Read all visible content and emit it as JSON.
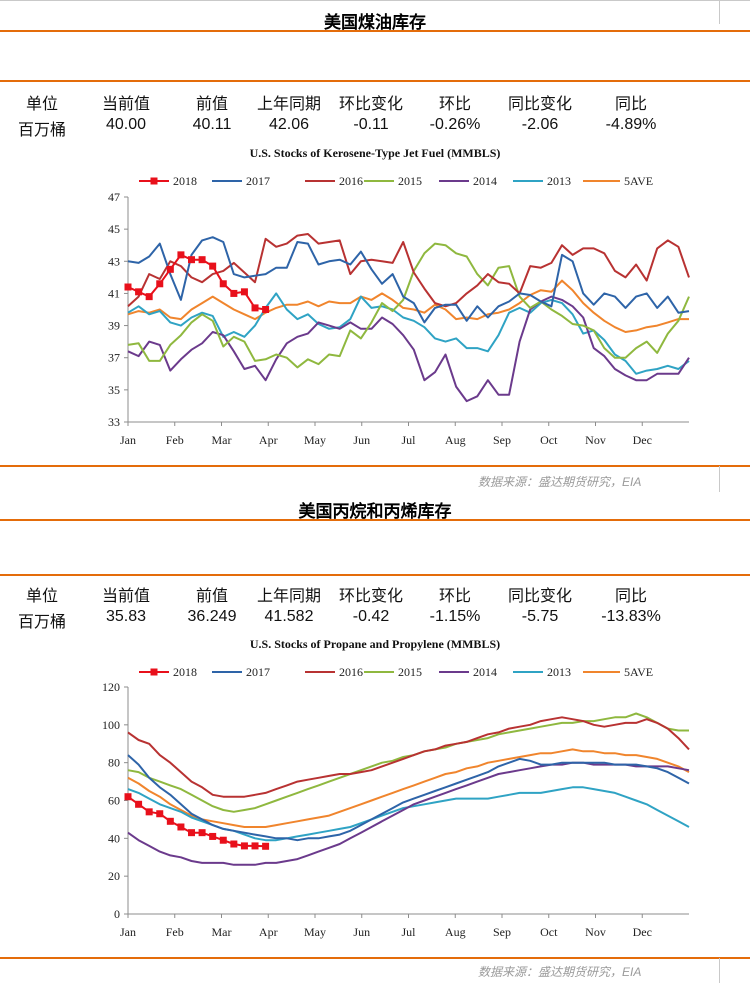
{
  "sections": [
    {
      "title": "美国煤油库存",
      "stats": {
        "headers": [
          "单位",
          "当前值",
          "前值",
          "上年同期",
          "环比变化",
          "环比",
          "同比变化",
          "同比"
        ],
        "values": [
          "百万桶",
          "40.00",
          "40.11",
          "42.06",
          "-0.11",
          "-0.26%",
          "-2.06",
          "-4.89%"
        ]
      },
      "source": "数据来源：盛达期货研究，EIA"
    },
    {
      "title": "美国丙烷和丙烯库存",
      "stats": {
        "headers": [
          "单位",
          "当前值",
          "前值",
          "上年同期",
          "环比变化",
          "环比",
          "同比变化",
          "同比"
        ],
        "values": [
          "百万桶",
          "35.83",
          "36.249",
          "41.582",
          "-0.42",
          "-1.15%",
          "-5.75",
          "-13.83%"
        ]
      },
      "source": "数据来源：盛达期货研究，EIA"
    }
  ],
  "colors": {
    "2018": "#e8101b",
    "2017": "#2e64a8",
    "2016": "#b83232",
    "2015": "#8fb83f",
    "2014": "#6b3a8c",
    "2013": "#2fa3c4",
    "5AVE": "#f0852d"
  },
  "chart_data": [
    {
      "type": "line",
      "title": "U.S.  Stocks of Kerosene-Type Jet Fuel (MMBLS)",
      "x_unit": "week",
      "xticks": [
        "Jan",
        "Feb",
        "Mar",
        "Apr",
        "May",
        "Jun",
        "Jul",
        "Aug",
        "Sep",
        "Oct",
        "Nov",
        "Dec"
      ],
      "ylim": [
        33,
        47
      ],
      "yticks": [
        33,
        35,
        37,
        39,
        41,
        43,
        45,
        47
      ],
      "grid": false,
      "legend": "top",
      "series": [
        {
          "name": "2018",
          "marker": "square",
          "values": [
            41.4,
            41.1,
            40.8,
            41.6,
            42.5,
            43.4,
            43.1,
            43.1,
            42.7,
            41.6,
            41.0,
            41.1,
            40.1,
            40.0
          ]
        },
        {
          "name": "2017",
          "values": [
            43.0,
            42.9,
            43.3,
            44.1,
            42.2,
            40.6,
            43.4,
            44.3,
            44.5,
            44.2,
            42.2,
            42.0,
            42.1,
            42.2,
            42.6,
            42.6,
            44.2,
            44.1,
            42.8,
            43.0,
            43.1,
            42.8,
            43.6,
            42.5,
            41.6,
            42.2,
            40.8,
            40.4,
            39.2,
            40.1,
            40.3,
            40.3,
            39.3,
            40.2,
            39.5,
            40.2,
            40.5,
            41.0,
            40.9,
            40.5,
            40.2,
            43.4,
            43.0,
            41.0,
            40.3,
            41.0,
            40.8,
            40.1,
            40.8,
            41.0,
            40.1,
            40.8,
            39.8,
            39.9
          ]
        },
        {
          "name": "2016",
          "values": [
            40.2,
            40.8,
            42.2,
            41.9,
            43.0,
            42.7,
            42.0,
            41.7,
            42.2,
            42.4,
            42.9,
            42.3,
            41.7,
            44.4,
            43.9,
            44.1,
            44.6,
            44.7,
            44.1,
            44.2,
            44.3,
            42.2,
            43.0,
            43.1,
            43.0,
            42.9,
            44.2,
            42.3,
            41.3,
            40.4,
            40.2,
            40.4,
            41.0,
            41.5,
            42.2,
            41.7,
            41.6,
            41.0,
            42.7,
            42.6,
            42.9,
            44.0,
            43.4,
            43.8,
            43.8,
            43.5,
            42.4,
            42.0,
            42.8,
            41.8,
            43.8,
            44.3,
            43.9,
            42.0
          ]
        },
        {
          "name": "2015",
          "values": [
            37.8,
            37.9,
            36.8,
            36.8,
            37.8,
            38.4,
            39.2,
            39.7,
            39.3,
            37.7,
            38.3,
            38.0,
            36.8,
            36.9,
            37.2,
            37.0,
            36.4,
            36.9,
            36.6,
            37.2,
            37.1,
            38.7,
            38.2,
            39.2,
            40.4,
            39.9,
            40.6,
            42.4,
            43.5,
            44.1,
            44.0,
            43.5,
            43.3,
            42.2,
            41.5,
            42.6,
            42.7,
            40.8,
            40.1,
            40.5,
            40.0,
            39.6,
            39.1,
            39.0,
            38.7,
            37.6,
            37.0,
            37.0,
            37.6,
            38.0,
            37.3,
            38.5,
            39.3,
            40.8
          ]
        },
        {
          "name": "2014",
          "values": [
            37.4,
            37.1,
            38.0,
            37.8,
            36.2,
            36.9,
            37.5,
            37.9,
            38.6,
            38.4,
            37.4,
            36.3,
            36.5,
            35.6,
            36.9,
            37.9,
            38.3,
            38.5,
            39.2,
            39.0,
            38.8,
            39.2,
            38.8,
            38.8,
            39.5,
            39.1,
            38.4,
            37.5,
            35.6,
            36.1,
            37.2,
            35.2,
            34.3,
            34.6,
            35.6,
            34.7,
            34.7,
            38.0,
            40.0,
            40.5,
            40.8,
            40.6,
            40.2,
            39.5,
            37.6,
            37.1,
            36.3,
            35.9,
            35.6,
            35.6,
            36.0,
            36.0,
            36.0,
            37.0
          ]
        },
        {
          "name": "2013",
          "values": [
            39.8,
            40.2,
            39.7,
            39.9,
            39.2,
            39.0,
            39.5,
            39.8,
            39.6,
            38.3,
            38.6,
            38.3,
            39.0,
            40.1,
            41.0,
            40.0,
            39.4,
            39.7,
            39.1,
            38.8,
            38.9,
            39.4,
            40.8,
            40.1,
            40.2,
            40.0,
            39.5,
            39.3,
            38.9,
            38.2,
            38.0,
            38.2,
            37.6,
            37.6,
            37.4,
            38.4,
            39.8,
            40.1,
            39.8,
            40.4,
            40.6,
            40.4,
            39.7,
            38.5,
            38.7,
            38.1,
            37.2,
            36.8,
            36.0,
            36.2,
            36.3,
            36.5,
            36.3,
            36.8
          ]
        },
        {
          "name": "5AVE",
          "values": [
            39.7,
            39.9,
            39.8,
            40.0,
            39.5,
            39.4,
            40.0,
            40.4,
            40.8,
            40.4,
            40.0,
            39.7,
            39.4,
            39.8,
            40.1,
            40.3,
            40.3,
            40.5,
            40.2,
            40.5,
            40.4,
            40.4,
            40.8,
            40.6,
            41.0,
            40.6,
            40.1,
            40.0,
            39.8,
            40.3,
            40.0,
            39.4,
            39.5,
            39.4,
            39.7,
            39.8,
            40.0,
            40.4,
            40.9,
            41.2,
            41.1,
            41.8,
            41.2,
            40.4,
            39.8,
            39.3,
            38.9,
            38.6,
            38.7,
            38.9,
            39.0,
            39.2,
            39.4,
            39.4
          ]
        }
      ]
    },
    {
      "type": "line",
      "title": "U.S.  Stocks of Propane and Propylene (MMBLS)",
      "x_unit": "week",
      "xticks": [
        "Jan",
        "Feb",
        "Mar",
        "Apr",
        "May",
        "Jun",
        "Jul",
        "Aug",
        "Sep",
        "Oct",
        "Nov",
        "Dec"
      ],
      "ylim": [
        0,
        120
      ],
      "yticks": [
        0,
        20,
        40,
        60,
        80,
        100,
        120
      ],
      "grid": false,
      "legend": "top",
      "series": [
        {
          "name": "2018",
          "marker": "square",
          "values": [
            62,
            58,
            54,
            53,
            49,
            46,
            43,
            43,
            41,
            39,
            37,
            36,
            36,
            35.8
          ]
        },
        {
          "name": "2017",
          "values": [
            84,
            79,
            72,
            67,
            63,
            58,
            53,
            50,
            47,
            45,
            44,
            43,
            42,
            41,
            40,
            40,
            39,
            40,
            40,
            41,
            42,
            44,
            47,
            50,
            53,
            56,
            59,
            61,
            63,
            65,
            67,
            69,
            71,
            73,
            75,
            78,
            80,
            82,
            81,
            79,
            79,
            80,
            80,
            80,
            80,
            80,
            79,
            79,
            79,
            78,
            77,
            75,
            72,
            69
          ]
        },
        {
          "name": "2016",
          "values": [
            96,
            92,
            90,
            84,
            80,
            75,
            70,
            67,
            63,
            62,
            62,
            62,
            63,
            64,
            66,
            68,
            70,
            71,
            72,
            73,
            74,
            74,
            75,
            76,
            78,
            80,
            82,
            84,
            86,
            87,
            89,
            90,
            91,
            93,
            95,
            96,
            98,
            99,
            100,
            102,
            103,
            104,
            103,
            102,
            100,
            99,
            100,
            101,
            101,
            103,
            101,
            98,
            93,
            87
          ]
        },
        {
          "name": "2015",
          "values": [
            76,
            75,
            72,
            70,
            68,
            66,
            63,
            60,
            57,
            55,
            54,
            55,
            56,
            58,
            60,
            62,
            64,
            66,
            68,
            70,
            72,
            74,
            76,
            78,
            80,
            81,
            83,
            84,
            86,
            87,
            88,
            90,
            91,
            92,
            93,
            95,
            96,
            97,
            98,
            99,
            100,
            101,
            101,
            102,
            102,
            103,
            104,
            104,
            106,
            104,
            101,
            98,
            97,
            97
          ]
        },
        {
          "name": "2014",
          "values": [
            43,
            39,
            36,
            33,
            31,
            30,
            28,
            27,
            27,
            27,
            26,
            26,
            26,
            27,
            27,
            28,
            29,
            31,
            33,
            35,
            37,
            40,
            43,
            46,
            49,
            52,
            55,
            58,
            60,
            62,
            64,
            66,
            68,
            70,
            72,
            74,
            75,
            76,
            77,
            78,
            79,
            79,
            80,
            80,
            79,
            79,
            79,
            79,
            78,
            78,
            78,
            78,
            77,
            76
          ]
        },
        {
          "name": "2013",
          "values": [
            66,
            64,
            61,
            58,
            56,
            54,
            51,
            49,
            47,
            45,
            44,
            42,
            40,
            39,
            39,
            40,
            41,
            42,
            43,
            44,
            45,
            46,
            48,
            50,
            52,
            54,
            56,
            57,
            58,
            59,
            60,
            61,
            61,
            61,
            61,
            62,
            63,
            64,
            64,
            64,
            65,
            66,
            67,
            67,
            66,
            65,
            64,
            62,
            60,
            58,
            55,
            52,
            49,
            46
          ]
        },
        {
          "name": "5AVE",
          "values": [
            72,
            69,
            65,
            62,
            58,
            55,
            52,
            50,
            49,
            48,
            47,
            46,
            46,
            46,
            47,
            48,
            49,
            50,
            51,
            52,
            54,
            56,
            58,
            60,
            62,
            64,
            66,
            68,
            70,
            72,
            74,
            75,
            77,
            78,
            80,
            81,
            82,
            83,
            84,
            85,
            85,
            86,
            87,
            86,
            86,
            85,
            85,
            84,
            84,
            83,
            82,
            80,
            78,
            75
          ]
        }
      ]
    }
  ]
}
